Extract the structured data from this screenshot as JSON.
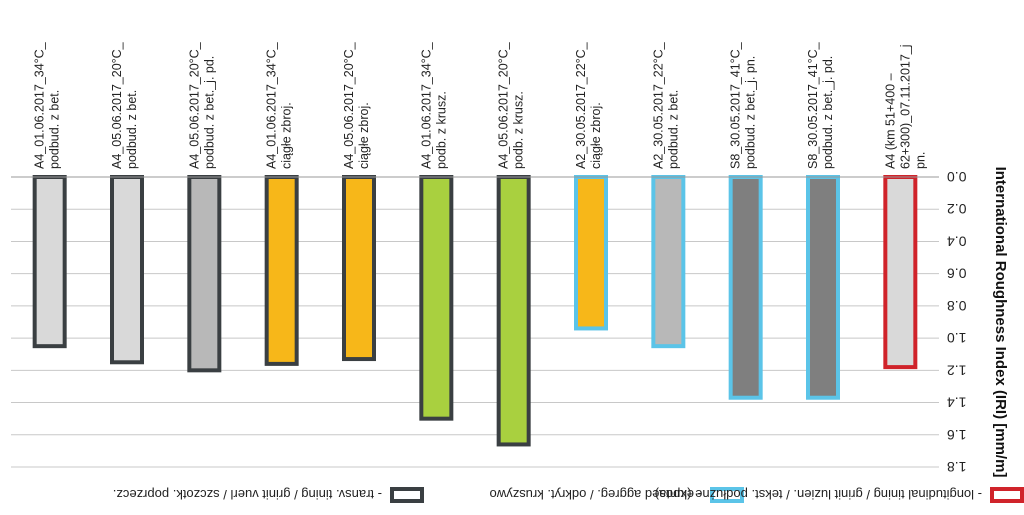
{
  "chart_data": {
    "type": "bar",
    "orientation": "vertical",
    "ylabel": "International Roughness Index (IRI) [mm/m]",
    "ylim": [
      0.0,
      1.8
    ],
    "yticks": [
      "0.0",
      "0.2",
      "0.4",
      "0.6",
      "0.8",
      "1.0",
      "1.2",
      "1.4",
      "1.6",
      "1.8"
    ],
    "grid": true,
    "legend_position": "top",
    "categories": [
      [
        "A4_01.06.2017_34°C_",
        "podbud. z bet."
      ],
      [
        "A4_05.06.2017_20°C_",
        "podbud. z bet."
      ],
      [
        "A4_05.06.2017_20°C_",
        "podbud. z bet._j. pd."
      ],
      [
        "A4_01.06.2017_34°C_",
        "ciągłe zbroj."
      ],
      [
        "A4_05.06.2017_20°C_",
        "ciągłe zbroj."
      ],
      [
        "A4_01.06.2017_34°C_",
        "podb. z krusz."
      ],
      [
        "A4_05.06.2017_20°C_",
        "podb. z krusz."
      ],
      [
        "A2_30.05.2017_22°C_",
        "ciągłe zbroj."
      ],
      [
        "A2_30.05.2017_22°C_",
        "podbud. z bet."
      ],
      [
        "S8_30.05.2017_41°C_",
        "podbud. z bet._j. pn."
      ],
      [
        "S8_30.05.2017_41°C_",
        "podbud. z bet._j. pd."
      ],
      [
        "A4 (km 51+400 –",
        "62+300)_07.11.2017_j",
        "pn."
      ]
    ],
    "values": [
      1.05,
      1.15,
      1.2,
      1.16,
      1.13,
      1.5,
      1.66,
      0.94,
      1.05,
      1.37,
      1.37,
      1.18
    ],
    "fill_colors": [
      "#d9d9d9",
      "#d9d9d9",
      "#b8b8b8",
      "#f7b719",
      "#f7b719",
      "#a9d03f",
      "#a9d03f",
      "#f7b719",
      "#b8b8b8",
      "#7f7f7f",
      "#7f7f7f",
      "#d9d9d9"
    ],
    "border_colors": [
      "#3a3f42",
      "#3a3f42",
      "#3a3f42",
      "#3a3f42",
      "#3a3f42",
      "#3a3f42",
      "#3a3f42",
      "#5bc4e8",
      "#5bc4e8",
      "#5bc4e8",
      "#5bc4e8",
      "#d0232a"
    ],
    "legend": [
      {
        "label": "- transv. tining / grinit vuerl / szczotk. poprzecz.",
        "border_color": "#3a3f42"
      },
      {
        "label": "- exposed aggreg. / odkryt. kruszywo",
        "border_color": "#5bc4e8"
      },
      {
        "label": "- longitudinal tining / grinit luzien. / tekst. podłużne (lunta)",
        "border_color": "#d0232a"
      }
    ]
  }
}
